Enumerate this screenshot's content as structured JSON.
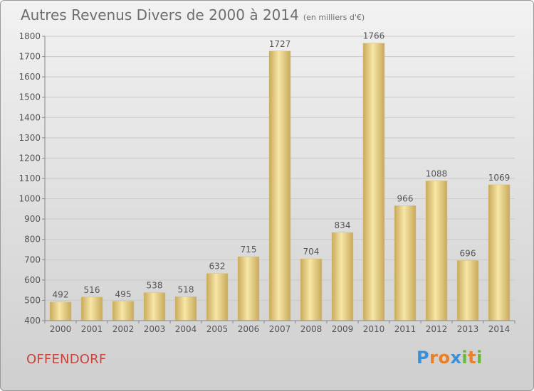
{
  "title": "Autres Revenus Divers de 2000 à 2014",
  "unit": "(en milliers d'€)",
  "commune": "OFFENDORF",
  "logo": {
    "text": "Proxiti",
    "letter_colors": [
      "#3b8fd6",
      "#e8802a",
      "#e8802a",
      "#3b8fd6",
      "#6ab83a",
      "#e8802a",
      "#6ab83a"
    ]
  },
  "colors": {
    "bar_light": "#f7e6a6",
    "bar_dark": "#c8a95a",
    "grid": "#c9c9c9",
    "text": "#555555"
  },
  "chart_data": {
    "type": "bar",
    "title": "Autres Revenus Divers de 2000 à 2014",
    "categories": [
      "2000",
      "2001",
      "2002",
      "2003",
      "2004",
      "2005",
      "2006",
      "2007",
      "2008",
      "2009",
      "2010",
      "2011",
      "2012",
      "2013",
      "2014"
    ],
    "values": [
      492,
      516,
      495,
      538,
      518,
      632,
      715,
      1727,
      704,
      834,
      1766,
      966,
      1088,
      696,
      1069
    ],
    "ylim": [
      400,
      1800
    ],
    "yticks": [
      400,
      500,
      600,
      700,
      800,
      900,
      1000,
      1100,
      1200,
      1300,
      1400,
      1500,
      1600,
      1700,
      1800
    ],
    "grid": true,
    "data_labels": true
  }
}
